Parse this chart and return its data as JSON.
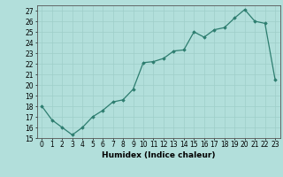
{
  "x": [
    0,
    1,
    2,
    3,
    4,
    5,
    6,
    7,
    8,
    9,
    10,
    11,
    12,
    13,
    14,
    15,
    16,
    17,
    18,
    19,
    20,
    21,
    22,
    23
  ],
  "y": [
    18.0,
    16.7,
    16.0,
    15.3,
    16.0,
    17.0,
    17.6,
    18.4,
    18.6,
    19.6,
    22.1,
    22.2,
    22.5,
    23.2,
    23.3,
    25.0,
    24.5,
    25.2,
    25.4,
    26.3,
    27.1,
    26.0,
    25.8,
    20.5
  ],
  "xlabel": "Humidex (Indice chaleur)",
  "xlim": [
    -0.5,
    23.5
  ],
  "ylim": [
    15,
    27.5
  ],
  "yticks": [
    15,
    16,
    17,
    18,
    19,
    20,
    21,
    22,
    23,
    24,
    25,
    26,
    27
  ],
  "xticks": [
    0,
    1,
    2,
    3,
    4,
    5,
    6,
    7,
    8,
    9,
    10,
    11,
    12,
    13,
    14,
    15,
    16,
    17,
    18,
    19,
    20,
    21,
    22,
    23
  ],
  "line_color": "#2d7d6f",
  "marker": "D",
  "marker_size": 1.8,
  "bg_color": "#b2dfdb",
  "grid_color": "#9ecec9",
  "xlabel_fontsize": 6.5,
  "tick_fontsize": 5.5,
  "linewidth": 0.9
}
